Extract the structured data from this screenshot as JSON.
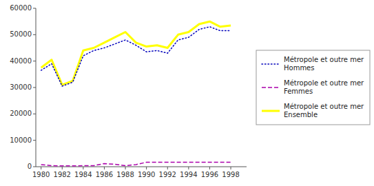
{
  "chart_data": {
    "type": "line",
    "x": [
      1980,
      1981,
      1982,
      1983,
      1984,
      1985,
      1986,
      1987,
      1988,
      1989,
      1990,
      1991,
      1992,
      1993,
      1994,
      1995,
      1996,
      1997,
      1998
    ],
    "series": [
      {
        "name": "Métropole et outre mer\nHommes",
        "color": "#0000BB",
        "line_style": "dotted",
        "values": [
          36500,
          39000,
          30500,
          32000,
          42000,
          44000,
          45000,
          46500,
          48000,
          46000,
          43500,
          44000,
          43000,
          48000,
          49000,
          52000,
          53000,
          51500,
          51500
        ]
      },
      {
        "name": "Métropole et outre mer\nFemmes",
        "color": "#AA00AA",
        "line_style": "dashed",
        "values": [
          800,
          400,
          300,
          300,
          400,
          400,
          1200,
          900,
          400,
          800,
          1700,
          1700,
          1700,
          1700,
          1700,
          1700,
          1700,
          1700,
          1700
        ]
      },
      {
        "name": "Métropole et outre mer\nEnsemble",
        "color": "#FFFF00",
        "line_style": "solid",
        "values": [
          37500,
          40500,
          31000,
          32500,
          44000,
          45000,
          47000,
          49000,
          51000,
          47000,
          45500,
          46000,
          45000,
          50000,
          51000,
          54000,
          55000,
          53000,
          53500
        ]
      }
    ],
    "xlim": [
      1979.5,
      1999.5
    ],
    "xticks": [
      1980,
      1982,
      1984,
      1986,
      1988,
      1990,
      1992,
      1994,
      1996,
      1998
    ],
    "ylim": [
      0,
      60000
    ],
    "yticks": [
      0,
      10000,
      20000,
      30000,
      40000,
      50000,
      60000
    ],
    "grid": false,
    "legend": "right"
  }
}
